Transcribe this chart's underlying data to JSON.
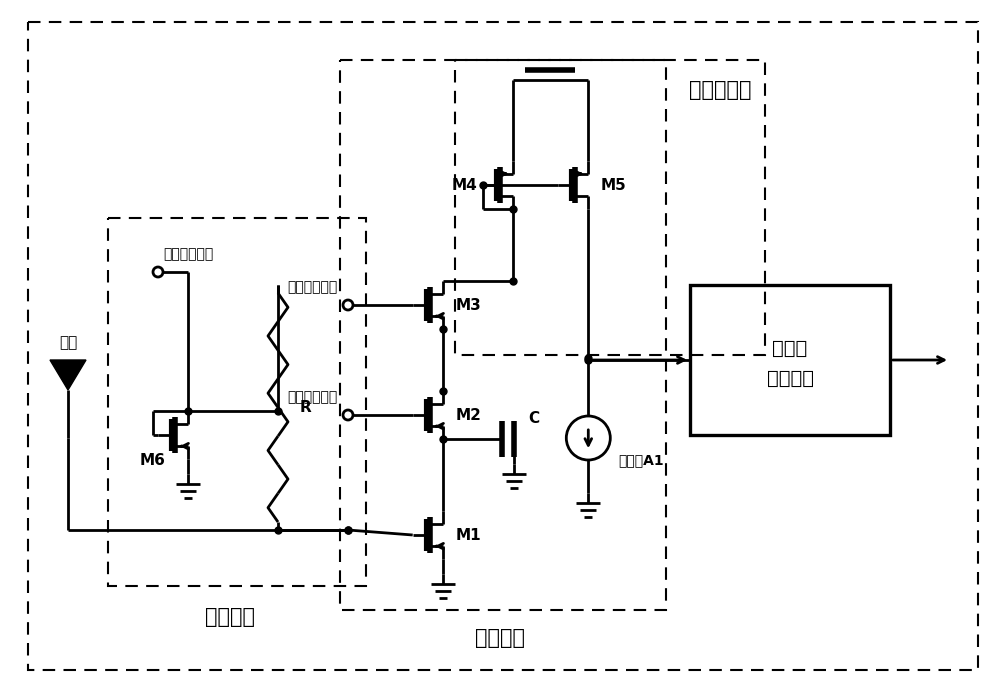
{
  "background": "#ffffff",
  "line_color": "#000000",
  "lw": 2.0,
  "dlw": 1.5,
  "fs": 11,
  "fsl": 15,
  "labels": {
    "antenna": "天线",
    "bias_circuit": "偏置电路",
    "detect_circuit": "检测电路",
    "mirror_circuit": "电流镜电路",
    "sqrt_line1": "平方根",
    "sqrt_line2": "运算电路",
    "bias1": "第一偏置电压",
    "bias2": "第二偏置电压",
    "bias3": "第三偏置电压",
    "current_source": "电流源A1",
    "M1": "M1",
    "M2": "M2",
    "M3": "M3",
    "M4": "M4",
    "M5": "M5",
    "M6": "M6",
    "R": "R",
    "C": "C"
  }
}
